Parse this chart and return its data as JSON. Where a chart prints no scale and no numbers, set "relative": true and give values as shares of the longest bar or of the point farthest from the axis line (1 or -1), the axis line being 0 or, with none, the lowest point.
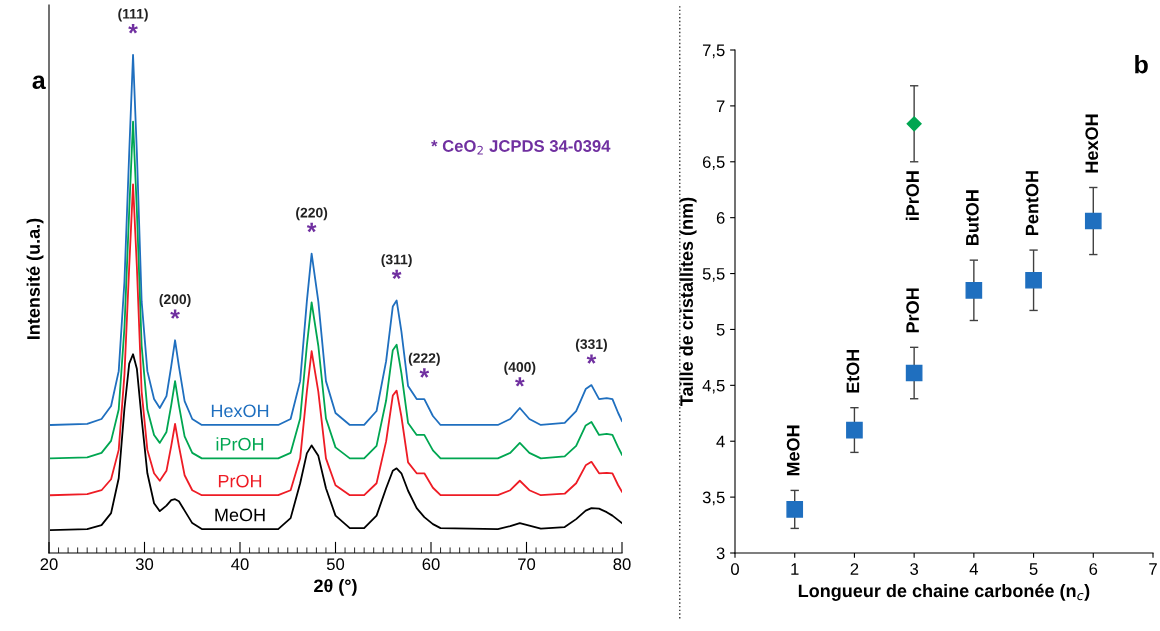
{
  "chart_data": [
    {
      "type": "line",
      "relative": true,
      "xlabel": "2θ (°)",
      "ylabel": "Intensité (u.a.)",
      "xlim": [
        20,
        80
      ],
      "xticks": [
        20,
        30,
        40,
        50,
        60,
        70,
        80
      ],
      "tick_labels": "x",
      "grid": false,
      "legend": false,
      "x": [
        20.2,
        24,
        25.5,
        26.5,
        27.3,
        27.9,
        28.4,
        28.8,
        29.2,
        29.7,
        30.3,
        31.0,
        31.6,
        32.3,
        32.8,
        33.2,
        33.6,
        34.2,
        35,
        36,
        44,
        45.3,
        46.3,
        47.0,
        47.5,
        48.2,
        49.0,
        50,
        51.5,
        53,
        54.3,
        55.3,
        56.0,
        56.4,
        56.9,
        57.6,
        58.5,
        59.3,
        60.2,
        61,
        67,
        68.3,
        69.3,
        70.3,
        71.5,
        74,
        75.2,
        76.2,
        76.8,
        77.6,
        78.4,
        79.0,
        79.6,
        80
      ],
      "series": [
        {
          "name": "HexOH",
          "color": "#1f6fbf",
          "values": [
            0.257,
            0.259,
            0.269,
            0.295,
            0.365,
            0.545,
            0.804,
            1.0,
            0.804,
            0.505,
            0.365,
            0.309,
            0.291,
            0.315,
            0.375,
            0.427,
            0.375,
            0.305,
            0.269,
            0.257,
            0.257,
            0.269,
            0.345,
            0.505,
            0.601,
            0.505,
            0.345,
            0.281,
            0.257,
            0.257,
            0.285,
            0.385,
            0.495,
            0.507,
            0.445,
            0.335,
            0.309,
            0.309,
            0.275,
            0.257,
            0.257,
            0.269,
            0.291,
            0.269,
            0.257,
            0.261,
            0.285,
            0.329,
            0.337,
            0.309,
            0.311,
            0.309,
            0.281,
            0.265
          ]
        },
        {
          "name": "iPrOH",
          "color": "#00a651",
          "values": [
            0.19,
            0.192,
            0.201,
            0.225,
            0.288,
            0.452,
            0.688,
            0.866,
            0.688,
            0.416,
            0.288,
            0.237,
            0.221,
            0.243,
            0.297,
            0.345,
            0.297,
            0.234,
            0.201,
            0.19,
            0.19,
            0.201,
            0.27,
            0.416,
            0.503,
            0.416,
            0.27,
            0.212,
            0.19,
            0.19,
            0.215,
            0.306,
            0.407,
            0.418,
            0.361,
            0.261,
            0.237,
            0.237,
            0.206,
            0.19,
            0.19,
            0.201,
            0.221,
            0.201,
            0.19,
            0.194,
            0.215,
            0.256,
            0.263,
            0.237,
            0.239,
            0.237,
            0.212,
            0.197
          ]
        },
        {
          "name": "PrOH",
          "color": "#ee1c25",
          "values": [
            0.116,
            0.118,
            0.126,
            0.148,
            0.207,
            0.358,
            0.575,
            0.74,
            0.575,
            0.324,
            0.207,
            0.16,
            0.145,
            0.165,
            0.215,
            0.259,
            0.215,
            0.156,
            0.126,
            0.116,
            0.116,
            0.126,
            0.19,
            0.324,
            0.405,
            0.324,
            0.19,
            0.136,
            0.116,
            0.116,
            0.14,
            0.224,
            0.316,
            0.326,
            0.274,
            0.182,
            0.16,
            0.16,
            0.131,
            0.116,
            0.116,
            0.126,
            0.145,
            0.126,
            0.116,
            0.119,
            0.14,
            0.176,
            0.183,
            0.16,
            0.161,
            0.16,
            0.136,
            0.123
          ]
        },
        {
          "name": "MeOH",
          "color": "#000000",
          "values": [
            0.046,
            0.048,
            0.056,
            0.08,
            0.15,
            0.29,
            0.38,
            0.399,
            0.37,
            0.27,
            0.16,
            0.1,
            0.084,
            0.095,
            0.106,
            0.108,
            0.104,
            0.085,
            0.06,
            0.048,
            0.048,
            0.07,
            0.14,
            0.2,
            0.216,
            0.195,
            0.13,
            0.075,
            0.05,
            0.05,
            0.075,
            0.13,
            0.165,
            0.17,
            0.16,
            0.125,
            0.09,
            0.072,
            0.058,
            0.05,
            0.048,
            0.054,
            0.06,
            0.055,
            0.049,
            0.052,
            0.068,
            0.085,
            0.09,
            0.089,
            0.082,
            0.075,
            0.066,
            0.06
          ]
        }
      ],
      "annotations": [
        "a",
        "* CeO$_{2}$ JCPDS 34-0394",
        {
          "text": "*",
          "x": 28.8,
          "y": 1.0
        },
        {
          "text": "(111)",
          "x": 28.8,
          "y": 1.0
        },
        {
          "text": "*",
          "x": 33.2,
          "y": 0.427
        },
        {
          "text": "(200)",
          "x": 33.2,
          "y": 0.427
        },
        {
          "text": "*",
          "x": 47.5,
          "y": 0.601
        },
        {
          "text": "(220)",
          "x": 47.5,
          "y": 0.601
        },
        {
          "text": "*",
          "x": 56.4,
          "y": 0.507
        },
        {
          "text": "(311)",
          "x": 56.4,
          "y": 0.507
        },
        {
          "text": "*",
          "x": 59.3,
          "y": 0.309
        },
        {
          "text": "(222)",
          "x": 59.3,
          "y": 0.309
        },
        {
          "text": "*",
          "x": 69.3,
          "y": 0.291
        },
        {
          "text": "(400)",
          "x": 69.3,
          "y": 0.291
        },
        {
          "text": "*",
          "x": 76.8,
          "y": 0.337
        },
        {
          "text": "(331)",
          "x": 76.8,
          "y": 0.337
        }
      ]
    },
    {
      "type": "scatter",
      "xlabel": "Longueur de chaine carbonée (n$_{c}$)",
      "ylabel": "Taille de cristallites (nm)",
      "xlim": [
        0,
        7
      ],
      "xticks": [
        0,
        1,
        2,
        3,
        4,
        5,
        6,
        7
      ],
      "ylim": [
        3,
        7.5
      ],
      "yticks": [
        3,
        {
          "value": 3.5,
          "label": "3,5"
        },
        4,
        {
          "value": 4.5,
          "label": "4,5"
        },
        5,
        {
          "value": 5.5,
          "label": "5,5"
        },
        6,
        {
          "value": 6.5,
          "label": "6,5"
        },
        7,
        {
          "value": 7.5,
          "label": "7,5"
        }
      ],
      "grid": false,
      "legend": false,
      "series": [
        {
          "color": "#1f6fbf",
          "marker": "square",
          "x": [
            1,
            2,
            3,
            4,
            5,
            6
          ],
          "values": [
            3.39,
            4.1,
            4.61,
            5.35,
            5.44,
            5.97
          ],
          "errors": [
            0.17,
            0.2,
            0.23,
            0.27,
            0.27,
            0.3
          ]
        },
        {
          "color": "#00a651",
          "marker": "diamond",
          "x": [
            3
          ],
          "values": [
            6.84
          ],
          "errors": [
            0.34
          ]
        }
      ],
      "annotations": [
        "b",
        {
          "text": "MeOH",
          "x": 1,
          "y": 3.39
        },
        {
          "text": "EtOH",
          "x": 2,
          "y": 4.1
        },
        {
          "text": "PrOH",
          "x": 3,
          "y": 4.61
        },
        {
          "text": "iPrOH",
          "x": 3,
          "y": 6.84
        },
        {
          "text": "ButOH",
          "x": 4,
          "y": 5.35
        },
        {
          "text": "PentOH",
          "x": 5,
          "y": 5.44
        },
        {
          "text": "HexOH",
          "x": 6,
          "y": 5.97
        }
      ]
    }
  ]
}
